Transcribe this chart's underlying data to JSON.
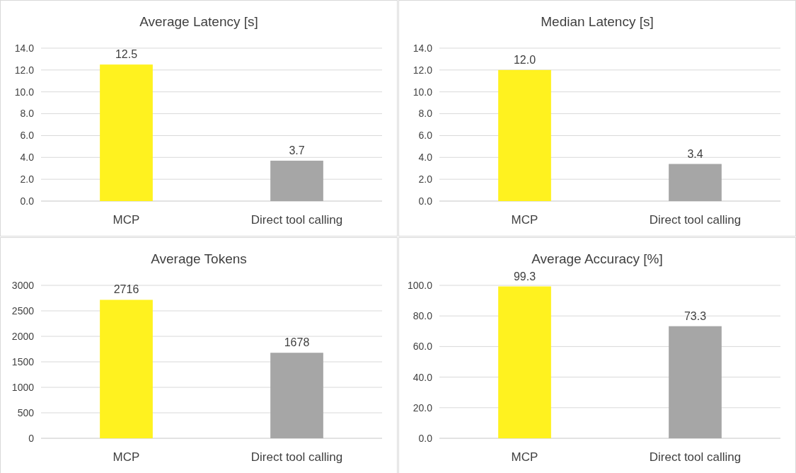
{
  "chart_data": [
    {
      "type": "bar",
      "title": "Average Latency [s]",
      "categories": [
        "MCP",
        "Direct tool calling"
      ],
      "values": [
        12.5,
        3.7
      ],
      "colors": [
        "#fff21f",
        "#a6a6a6"
      ],
      "value_labels": [
        "12.5",
        "3.7"
      ],
      "ylim": [
        0,
        14
      ],
      "yticks": [
        {
          "value": 0,
          "label": "0.0"
        },
        {
          "value": 2,
          "label": "2.0"
        },
        {
          "value": 4,
          "label": "4.0"
        },
        {
          "value": 6,
          "label": "6.0"
        },
        {
          "value": 8,
          "label": "8.0"
        },
        {
          "value": 10,
          "label": "10.0"
        },
        {
          "value": 12,
          "label": "12.0"
        },
        {
          "value": 14,
          "label": "14.0"
        }
      ],
      "grid": "y"
    },
    {
      "type": "bar",
      "title": "Median Latency [s]",
      "categories": [
        "MCP",
        "Direct tool calling"
      ],
      "values": [
        12.0,
        3.4
      ],
      "colors": [
        "#fff21f",
        "#a6a6a6"
      ],
      "value_labels": [
        "12.0",
        "3.4"
      ],
      "ylim": [
        0,
        14
      ],
      "yticks": [
        {
          "value": 0,
          "label": "0.0"
        },
        {
          "value": 2,
          "label": "2.0"
        },
        {
          "value": 4,
          "label": "4.0"
        },
        {
          "value": 6,
          "label": "6.0"
        },
        {
          "value": 8,
          "label": "8.0"
        },
        {
          "value": 10,
          "label": "10.0"
        },
        {
          "value": 12,
          "label": "12.0"
        },
        {
          "value": 14,
          "label": "14.0"
        }
      ],
      "grid": "y"
    },
    {
      "type": "bar",
      "title": "Average Tokens",
      "categories": [
        "MCP",
        "Direct tool calling"
      ],
      "values": [
        2716,
        1678
      ],
      "colors": [
        "#fff21f",
        "#a6a6a6"
      ],
      "data_labels": true,
      "ylim": [
        0,
        3000
      ],
      "yticks": [
        0,
        500,
        1000,
        1500,
        2000,
        2500,
        3000
      ],
      "grid": "y"
    },
    {
      "type": "bar",
      "title": "Average Accuracy [%]",
      "categories": [
        "MCP",
        "Direct tool calling"
      ],
      "values": [
        99.3,
        73.3
      ],
      "colors": [
        "#fff21f",
        "#a6a6a6"
      ],
      "value_labels": [
        "99.3",
        "73.3"
      ],
      "ylim": [
        0,
        100
      ],
      "yticks": [
        {
          "value": 0,
          "label": "0.0"
        },
        {
          "value": 20,
          "label": "20.0"
        },
        {
          "value": 40,
          "label": "40.0"
        },
        {
          "value": 60,
          "label": "60.0"
        },
        {
          "value": 80,
          "label": "80.0"
        },
        {
          "value": 100,
          "label": "100.0"
        }
      ],
      "grid": "y"
    }
  ]
}
